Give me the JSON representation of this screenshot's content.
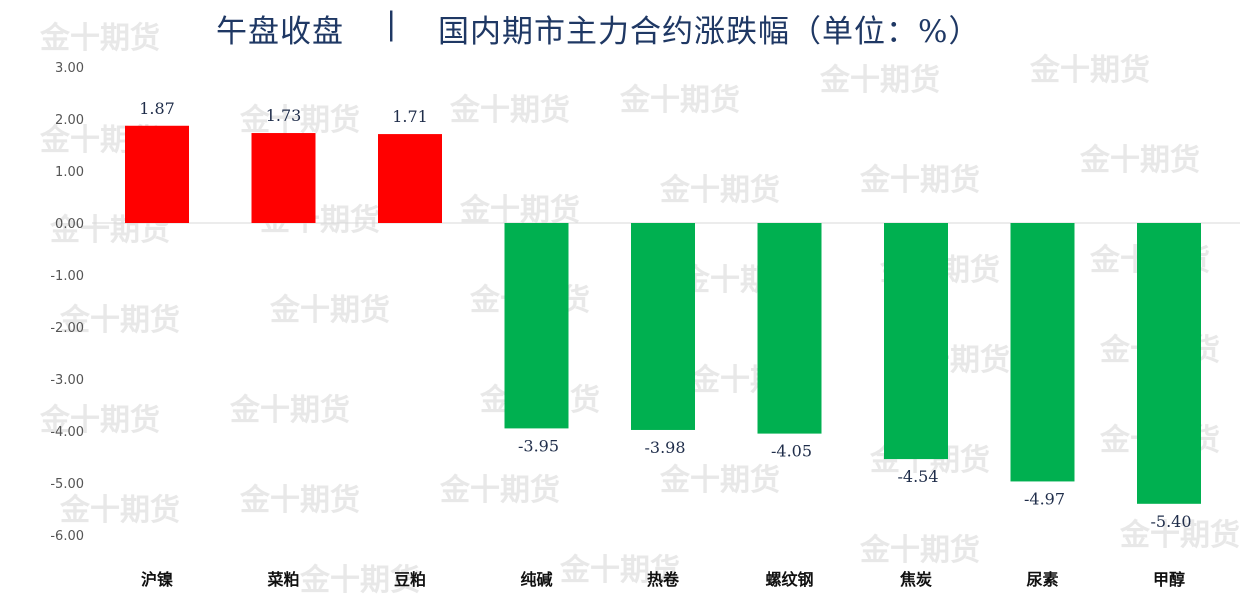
{
  "header": {
    "part1": "午盘收盘",
    "separator": "|",
    "part2": "国内期市主力合约涨跌幅（单位：%）"
  },
  "watermark": "金十期货",
  "colors": {
    "positive": "#ff0000",
    "negative": "#00b050",
    "axis_text": "#555555",
    "title": "#1f3864"
  },
  "chart_data": {
    "type": "bar",
    "title": "午盘收盘 | 国内期市主力合约涨跌幅（单位：%）",
    "categories": [
      "沪镍",
      "菜粕",
      "豆粕",
      "纯碱",
      "热卷",
      "螺纹钢",
      "焦炭",
      "尿素",
      "甲醇"
    ],
    "values": [
      1.87,
      1.73,
      1.71,
      -3.95,
      -3.98,
      -4.05,
      -4.54,
      -4.97,
      -5.4
    ],
    "value_labels": [
      "1.87",
      "1.73",
      "1.71",
      "-3.95",
      "-3.98",
      "-4.05",
      "-4.54",
      "-4.97",
      "-5.40"
    ],
    "ylim": [
      -6,
      3
    ],
    "yticks": [
      "3.00",
      "2.00",
      "1.00",
      "0.00",
      "-1.00",
      "-2.00",
      "-3.00",
      "-4.00",
      "-5.00",
      "-6.00"
    ],
    "ytick_values": [
      3,
      2,
      1,
      0,
      -1,
      -2,
      -3,
      -4,
      -5,
      -6
    ],
    "grid": false,
    "legend": "none"
  }
}
